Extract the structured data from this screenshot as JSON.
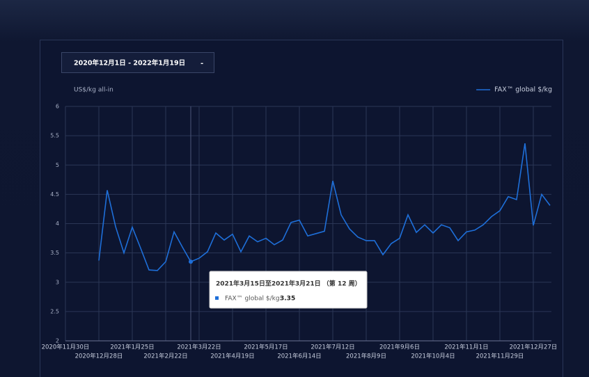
{
  "date_range": {
    "label": "2020年12月1日 - 2022年1月19日",
    "caret": "-"
  },
  "tooltip": {
    "title": "2021年3月15日至2021年3月21日 （第 12 周）",
    "series_label": "FAX™ global $/kg:",
    "index": 11
  },
  "chart_data": {
    "type": "line",
    "y_label": "US$/kg all-in",
    "legend": "top-right",
    "grid": true,
    "x": [
      "2020-12-28",
      "2021-01-04",
      "2021-01-11",
      "2021-01-18",
      "2021-01-25",
      "2021-02-01",
      "2021-02-08",
      "2021-02-15",
      "2021-02-22",
      "2021-03-01",
      "2021-03-08",
      "2021-03-15",
      "2021-03-22",
      "2021-03-29",
      "2021-04-05",
      "2021-04-12",
      "2021-04-19",
      "2021-04-26",
      "2021-05-03",
      "2021-05-10",
      "2021-05-17",
      "2021-05-24",
      "2021-05-31",
      "2021-06-07",
      "2021-06-14",
      "2021-06-21",
      "2021-06-28",
      "2021-07-05",
      "2021-07-12",
      "2021-07-19",
      "2021-07-26",
      "2021-08-02",
      "2021-08-09",
      "2021-08-16",
      "2021-08-23",
      "2021-08-30",
      "2021-09-06",
      "2021-09-13",
      "2021-09-20",
      "2021-09-27",
      "2021-10-04",
      "2021-10-11",
      "2021-10-18",
      "2021-10-25",
      "2021-11-01",
      "2021-11-08",
      "2021-11-15",
      "2021-11-22",
      "2021-11-29",
      "2021-12-06",
      "2021-12-13",
      "2021-12-20",
      "2021-12-27",
      "2022-01-03",
      "2022-01-10"
    ],
    "series": [
      {
        "name": "FAX™ global $/kg",
        "color": "#1e6fd9",
        "values": [
          3.37,
          4.57,
          3.95,
          3.5,
          3.94,
          3.58,
          3.21,
          3.2,
          3.35,
          3.86,
          3.6,
          3.35,
          3.41,
          3.52,
          3.84,
          3.72,
          3.82,
          3.52,
          3.79,
          3.69,
          3.75,
          3.64,
          3.72,
          4.02,
          4.06,
          3.79,
          3.83,
          3.87,
          4.73,
          4.15,
          3.91,
          3.77,
          3.71,
          3.71,
          3.47,
          3.66,
          3.75,
          4.15,
          3.85,
          3.98,
          3.84,
          3.98,
          3.93,
          3.71,
          3.86,
          3.89,
          3.98,
          4.12,
          4.22,
          4.46,
          4.41,
          5.37,
          3.97,
          4.5,
          4.31
        ]
      }
    ],
    "xlim": [
      "2020-11-30",
      "2022-01-10"
    ],
    "xticks": [
      {
        "value": "2020-11-30",
        "label": "2020年11月30日"
      },
      {
        "value": "2020-12-28",
        "label": "2020年12月28日"
      },
      {
        "value": "2021-01-25",
        "label": "2021年1月25日"
      },
      {
        "value": "2021-02-22",
        "label": "2021年2月22日"
      },
      {
        "value": "2021-03-22",
        "label": "2021年3月22日"
      },
      {
        "value": "2021-04-19",
        "label": "2021年4月19日"
      },
      {
        "value": "2021-05-17",
        "label": "2021年5月17日"
      },
      {
        "value": "2021-06-14",
        "label": "2021年6月14日"
      },
      {
        "value": "2021-07-12",
        "label": "2021年7月12日"
      },
      {
        "value": "2021-08-09",
        "label": "2021年8月9日"
      },
      {
        "value": "2021-09-06",
        "label": "2021年9月6日"
      },
      {
        "value": "2021-10-04",
        "label": "2021年10月4日"
      },
      {
        "value": "2021-11-01",
        "label": "2021年11月1日"
      },
      {
        "value": "2021-11-29",
        "label": "2021年11月29日"
      },
      {
        "value": "2021-12-27",
        "label": "2021年12月27日"
      }
    ],
    "ylim": [
      2,
      6
    ],
    "yticks": [
      2,
      2.5,
      3,
      3.5,
      4,
      4.5,
      5,
      5.5,
      6
    ]
  }
}
